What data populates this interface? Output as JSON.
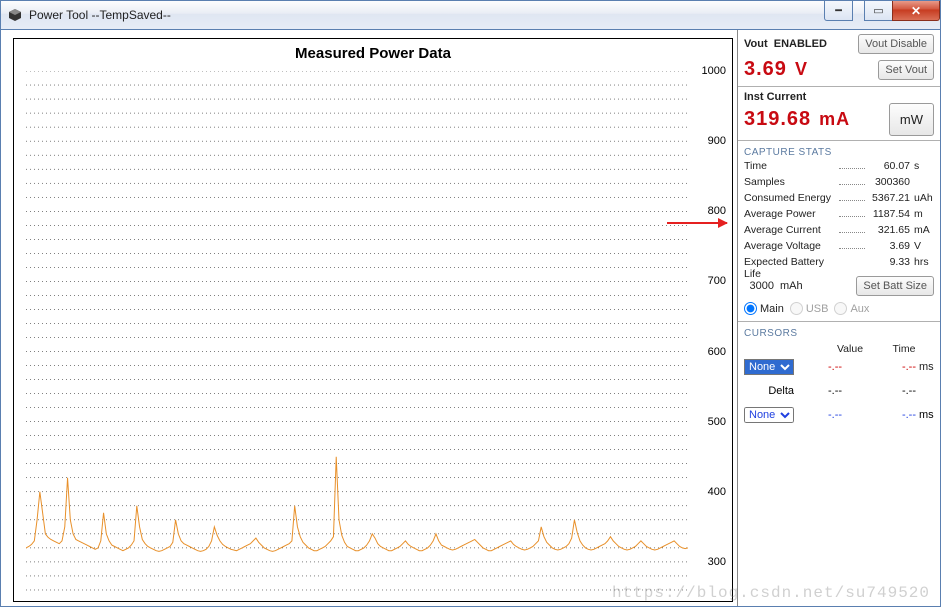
{
  "window": {
    "title": "Power Tool --TempSaved--"
  },
  "chart": {
    "title": "Measured Power Data",
    "type": "line",
    "y_axis": {
      "min": 250,
      "max": 1000,
      "ticks": [
        300,
        400,
        500,
        600,
        700,
        800,
        900,
        1000
      ],
      "grid_color": "#000000",
      "grid_dash": "1 3"
    },
    "series_color": "#e8902a",
    "background_color": "#ffffff",
    "border_color": "#000000",
    "title_fontsize": 15,
    "arrow_color": "#e52020",
    "data": [
      320,
      322,
      325,
      330,
      360,
      400,
      370,
      340,
      335,
      332,
      330,
      328,
      326,
      330,
      350,
      420,
      360,
      340,
      332,
      330,
      328,
      326,
      324,
      322,
      320,
      318,
      320,
      330,
      370,
      340,
      330,
      324,
      322,
      320,
      318,
      316,
      318,
      320,
      324,
      330,
      380,
      350,
      332,
      326,
      322,
      320,
      318,
      316,
      315,
      316,
      318,
      320,
      322,
      328,
      360,
      340,
      330,
      326,
      324,
      322,
      320,
      318,
      316,
      315,
      316,
      318,
      322,
      330,
      350,
      338,
      330,
      325,
      322,
      320,
      318,
      317,
      316,
      318,
      320,
      322,
      324,
      326,
      330,
      334,
      328,
      324,
      320,
      318,
      316,
      315,
      316,
      318,
      320,
      322,
      324,
      326,
      330,
      380,
      350,
      336,
      328,
      324,
      320,
      318,
      316,
      316,
      318,
      320,
      322,
      326,
      330,
      336,
      450,
      360,
      338,
      328,
      322,
      320,
      318,
      316,
      316,
      318,
      320,
      324,
      330,
      340,
      334,
      326,
      322,
      320,
      318,
      316,
      316,
      318,
      320,
      322,
      326,
      330,
      325,
      322,
      320,
      318,
      316,
      316,
      318,
      320,
      324,
      330,
      340,
      330,
      324,
      322,
      320,
      318,
      317,
      318,
      320,
      322,
      324,
      326,
      328,
      330,
      332,
      328,
      324,
      320,
      318,
      316,
      316,
      318,
      320,
      322,
      324,
      326,
      328,
      330,
      325,
      322,
      320,
      318,
      317,
      318,
      320,
      322,
      326,
      330,
      350,
      336,
      328,
      324,
      320,
      318,
      317,
      318,
      320,
      322,
      326,
      334,
      360,
      342,
      330,
      324,
      320,
      318,
      317,
      318,
      320,
      322,
      324,
      326,
      330,
      336,
      330,
      326,
      322,
      320,
      318,
      317,
      318,
      320,
      322,
      326,
      330,
      326,
      322,
      320,
      318,
      317,
      318,
      320,
      322,
      324,
      326,
      328,
      330,
      326,
      322,
      320,
      319,
      320
    ]
  },
  "vout": {
    "label": "Vout",
    "status": "ENABLED",
    "value": "3.69",
    "unit": "V",
    "disable_btn": "Vout Disable",
    "set_btn": "Set Vout"
  },
  "current": {
    "label": "Inst Current",
    "value": "319.68",
    "unit": "mA",
    "mw_btn": "mW"
  },
  "capture_stats_label": "CAPTURE STATS",
  "stats": [
    {
      "k": "Time",
      "dots": true,
      "v": "60.07",
      "u": "s"
    },
    {
      "k": "Samples",
      "dots": true,
      "v": "300360",
      "u": ""
    },
    {
      "k": "Consumed Energy",
      "dots": true,
      "v": "5367.21",
      "u": "uAh"
    },
    {
      "k": "Average Power",
      "dots": true,
      "v": "1187.54",
      "u": "m"
    },
    {
      "k": "Average Current",
      "dots": true,
      "v": "321.65",
      "u": "mA"
    },
    {
      "k": "Average Voltage",
      "dots": true,
      "v": "3.69",
      "u": "V"
    },
    {
      "k": "Expected Battery Life",
      "dots": false,
      "v": "9.33",
      "u": "hrs"
    }
  ],
  "battery": {
    "value": "3000",
    "unit": "mAh",
    "btn": "Set Batt Size"
  },
  "source": {
    "main": "Main",
    "usb": "USB",
    "aux": "Aux"
  },
  "cursors": {
    "label": "CURSORS",
    "value_h": "Value",
    "time_h": "Time",
    "row1": {
      "sel": "None",
      "v1": "-.--",
      "v2": "-.--",
      "u": "ms"
    },
    "delta": {
      "label": "Delta",
      "v1": "-.--",
      "v2": "-.--"
    },
    "row2": {
      "sel": "None",
      "v1": "-.--",
      "v2": "-.--",
      "u": "ms"
    }
  },
  "watermark": "https://blog.csdn.net/su749520"
}
